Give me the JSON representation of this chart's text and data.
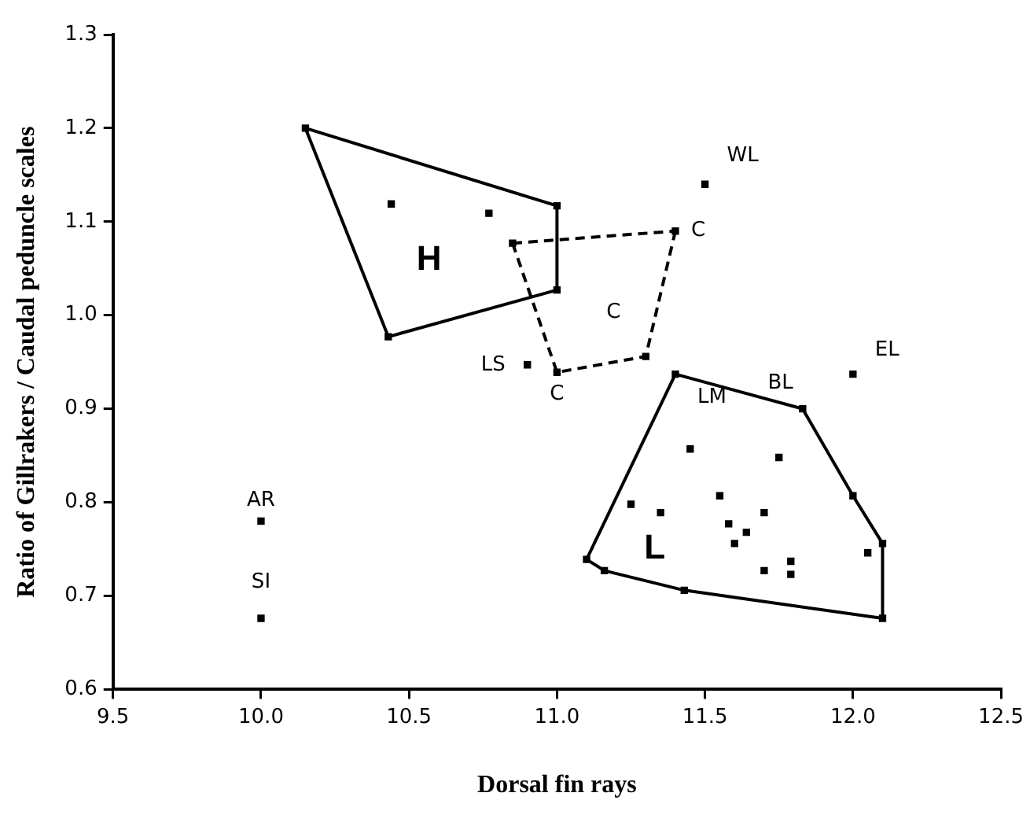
{
  "chart_data": {
    "type": "scatter",
    "xlabel": "Dorsal fin rays",
    "ylabel": "Ratio of Gillrakers / Caudal peduncle scales",
    "xlim": [
      9.5,
      12.5
    ],
    "xticks": [
      {
        "value": 9.5,
        "label": "9.5"
      },
      {
        "value": 10,
        "label": "10.0"
      },
      {
        "value": 10.5,
        "label": "10.5"
      },
      {
        "value": 11,
        "label": "11.0"
      },
      {
        "value": 11.5,
        "label": "11.5"
      },
      {
        "value": 12,
        "label": "12.0"
      },
      {
        "value": 12.5,
        "label": "12.5"
      }
    ],
    "ylim": [
      0.6,
      1.3
    ],
    "yticks": [
      0.6,
      0.7,
      0.8,
      0.9,
      {
        "value": 1,
        "label": "1.0"
      },
      1.1,
      1.2,
      1.3
    ],
    "grid": false,
    "legend": false,
    "marker": "square",
    "series": [
      {
        "type": "scatter",
        "color": "#000000",
        "x": [
          10.15,
          11.0,
          11.0,
          10.43,
          10.44,
          10.77,
          10.85,
          11.4,
          11.3,
          11.0,
          10.9,
          11.5,
          12.0,
          11.4,
          11.83,
          11.1,
          11.16,
          11.43,
          12.1,
          12.1,
          12.05,
          12.0,
          11.45,
          11.75,
          11.25,
          11.35,
          11.55,
          11.58,
          11.64,
          11.6,
          11.7,
          11.7,
          11.79,
          11.79,
          10.0,
          10.0
        ],
        "values": [
          1.2,
          1.117,
          1.027,
          0.977,
          1.119,
          1.109,
          1.077,
          1.09,
          0.956,
          0.939,
          0.947,
          1.14,
          0.937,
          0.937,
          0.9,
          0.739,
          0.727,
          0.706,
          0.676,
          0.756,
          0.746,
          0.807,
          0.857,
          0.848,
          0.798,
          0.789,
          0.807,
          0.777,
          0.768,
          0.756,
          0.789,
          0.727,
          0.737,
          0.723,
          0.78,
          0.676
        ]
      },
      {
        "type": "line",
        "name": "H",
        "color": "#000000",
        "marker": "none",
        "line_style": "solid",
        "x": [
          10.15,
          11.0,
          11.0
        ],
        "values": [
          1.2,
          1.117,
          1.027
        ]
      },
      {
        "type": "line",
        "color": "#000000",
        "marker": "none",
        "line_style": "solid",
        "x": [
          10.15,
          10.43,
          11.0
        ],
        "values": [
          1.2,
          0.977,
          1.027
        ]
      },
      {
        "type": "line",
        "color": "#000000",
        "marker": "none",
        "line_style": "dashed",
        "x": [
          10.85,
          11.4
        ],
        "values": [
          1.077,
          1.09
        ]
      },
      {
        "type": "line",
        "color": "#000000",
        "marker": "none",
        "line_style": "dashed",
        "x": [
          10.85,
          11.0,
          11.3,
          11.4
        ],
        "values": [
          1.077,
          0.939,
          0.956,
          1.09
        ]
      },
      {
        "type": "line",
        "name": "L",
        "color": "#000000",
        "marker": "none",
        "line_style": "solid",
        "x": [
          11.1,
          11.4,
          11.83,
          12.0,
          12.1,
          12.1
        ],
        "values": [
          0.739,
          0.937,
          0.9,
          0.807,
          0.756,
          0.676
        ]
      },
      {
        "type": "line",
        "color": "#000000",
        "marker": "none",
        "line_style": "solid",
        "x": [
          11.1,
          11.16,
          11.43,
          12.1
        ],
        "values": [
          0.739,
          0.727,
          0.706,
          0.676
        ]
      }
    ],
    "annotations": [
      {
        "text": "WL",
        "x": 11.5,
        "y": 1.14
      },
      {
        "text": "C",
        "x": 11.4,
        "y": 1.09
      },
      {
        "text": "C",
        "x": 11.3,
        "y": 0.956
      },
      {
        "text": "C",
        "x": 11.0,
        "y": 0.939
      },
      {
        "text": "LS",
        "x": 10.9,
        "y": 0.947
      },
      {
        "text": "LM",
        "x": 11.4,
        "y": 0.937
      },
      {
        "text": "BL",
        "x": 11.83,
        "y": 0.9
      },
      {
        "text": "EL",
        "x": 12.0,
        "y": 0.937
      },
      {
        "text": "AR",
        "x": 10.0,
        "y": 0.78
      },
      {
        "text": "SI",
        "x": 10.0,
        "y": 0.676
      }
    ]
  }
}
